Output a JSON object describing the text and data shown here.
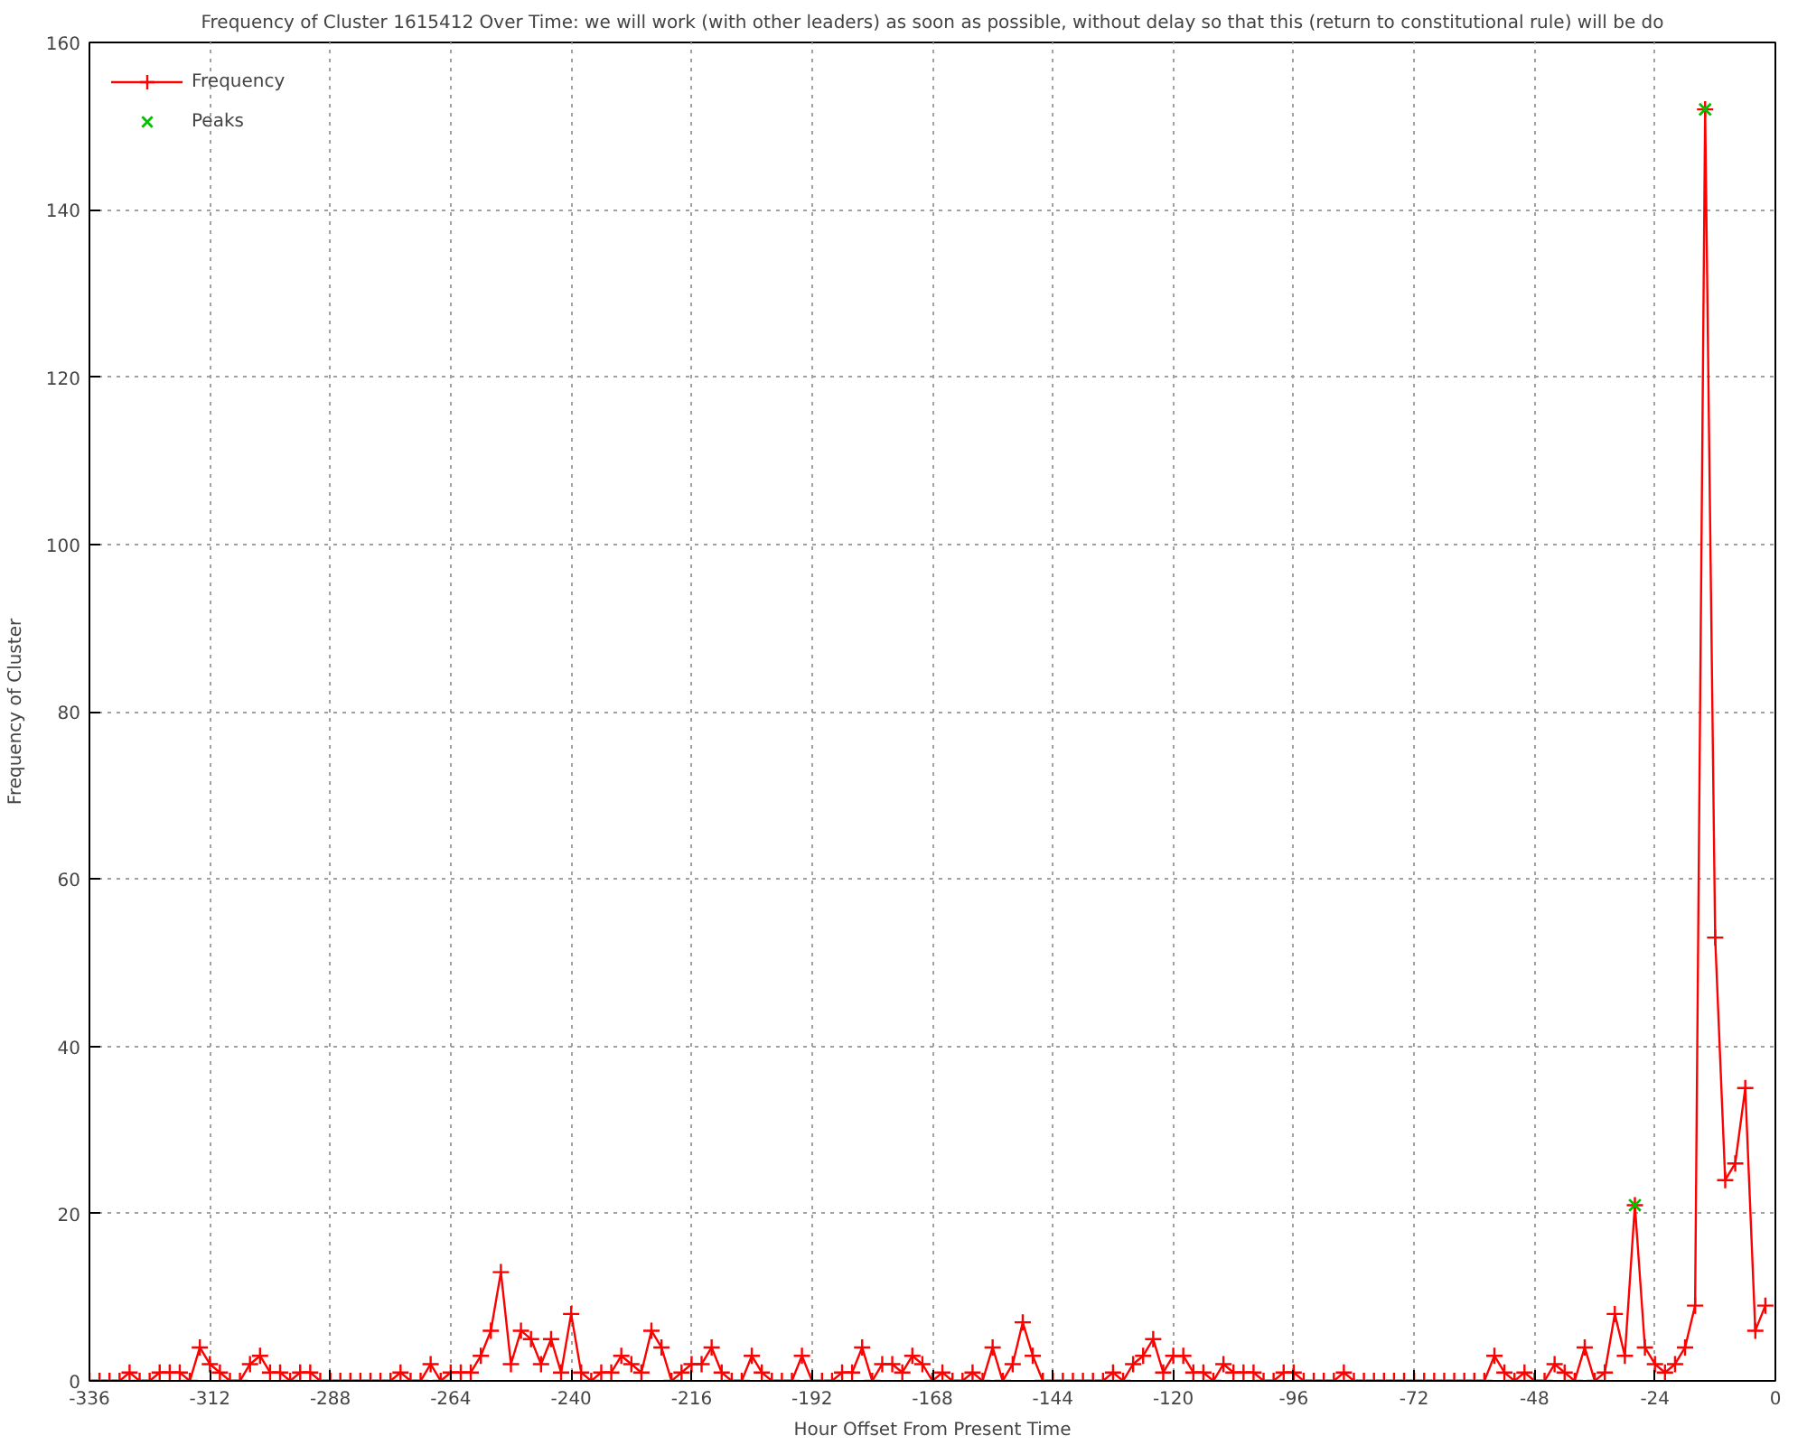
{
  "chart_data": {
    "type": "line",
    "title": "Frequency of Cluster 1615412 Over Time: we will work (with other leaders) as soon as possible, without delay so that this (return to constitutional rule) will be do",
    "xlabel": "Hour Offset From Present Time",
    "ylabel": "Frequency of Cluster",
    "xlim": [
      -336,
      0
    ],
    "ylim": [
      0,
      160
    ],
    "xticks": [
      -336,
      -312,
      -288,
      -264,
      -240,
      -216,
      -192,
      -168,
      -144,
      -120,
      -96,
      -72,
      -48,
      -24,
      0
    ],
    "yticks": [
      0,
      20,
      40,
      60,
      80,
      100,
      120,
      140,
      160
    ],
    "grid": true,
    "legend": "top left",
    "series": [
      {
        "name": "Frequency",
        "color": "#ff0000",
        "marker": "cross",
        "x": [
          -336,
          -334,
          -332,
          -330,
          -328,
          -326,
          -324,
          -322,
          -320,
          -318,
          -316,
          -314,
          -312,
          -310,
          -308,
          -306,
          -304,
          -302,
          -300,
          -298,
          -296,
          -294,
          -292,
          -290,
          -288,
          -286,
          -284,
          -282,
          -280,
          -278,
          -276,
          -274,
          -272,
          -270,
          -268,
          -266,
          -264,
          -262,
          -260,
          -258,
          -256,
          -254,
          -252,
          -250,
          -248,
          -246,
          -244,
          -242,
          -240,
          -238,
          -236,
          -234,
          -232,
          -230,
          -228,
          -226,
          -224,
          -222,
          -220,
          -218,
          -216,
          -214,
          -212,
          -210,
          -208,
          -206,
          -204,
          -202,
          -200,
          -198,
          -196,
          -194,
          -192,
          -190,
          -188,
          -186,
          -184,
          -182,
          -180,
          -178,
          -176,
          -174,
          -172,
          -170,
          -168,
          -166,
          -164,
          -162,
          -160,
          -158,
          -156,
          -154,
          -152,
          -150,
          -148,
          -146,
          -144,
          -142,
          -140,
          -138,
          -136,
          -134,
          -132,
          -130,
          -128,
          -126,
          -124,
          -122,
          -120,
          -118,
          -116,
          -114,
          -112,
          -110,
          -108,
          -106,
          -104,
          -102,
          -100,
          -98,
          -96,
          -94,
          -92,
          -90,
          -88,
          -86,
          -84,
          -82,
          -80,
          -78,
          -76,
          -74,
          -72,
          -70,
          -68,
          -66,
          -64,
          -62,
          -60,
          -58,
          -56,
          -54,
          -52,
          -50,
          -48,
          -46,
          -44,
          -42,
          -40,
          -38,
          -36,
          -34,
          -32,
          -30,
          -28,
          -26,
          -24,
          -22,
          -20,
          -18,
          -16,
          -14,
          -12,
          -10,
          -8,
          -6,
          -4,
          -2
        ],
        "values": [
          0,
          0,
          0,
          0,
          1,
          0,
          0,
          1,
          1,
          1,
          0,
          4,
          2,
          1,
          0,
          0,
          2,
          3,
          1,
          1,
          0,
          1,
          1,
          0,
          0,
          0,
          0,
          0,
          0,
          0,
          0,
          1,
          0,
          0,
          2,
          0,
          1,
          1,
          1,
          3,
          6,
          13,
          2,
          6,
          5,
          2,
          5,
          1,
          8,
          1,
          0,
          1,
          1,
          3,
          2,
          1,
          6,
          4,
          0,
          1,
          2,
          2,
          4,
          1,
          0,
          0,
          3,
          1,
          0,
          0,
          0,
          3,
          0,
          0,
          0,
          1,
          1,
          4,
          0,
          2,
          2,
          1,
          3,
          2,
          0,
          1,
          0,
          0,
          1,
          0,
          4,
          0,
          2,
          7,
          3,
          0,
          0,
          0,
          0,
          0,
          0,
          0,
          1,
          0,
          2,
          3,
          5,
          1,
          3,
          3,
          1,
          1,
          0,
          2,
          1,
          1,
          1,
          0,
          0,
          1,
          1,
          0,
          0,
          0,
          0,
          1,
          0,
          0,
          0,
          0,
          0,
          0,
          0,
          0,
          0,
          0,
          0,
          0,
          0,
          0,
          3,
          1,
          0,
          1,
          0,
          0,
          2,
          1,
          0,
          4,
          0,
          1,
          8,
          3,
          21,
          4,
          2,
          1,
          2,
          4,
          9,
          152,
          53,
          24,
          26,
          35,
          6,
          9
        ]
      },
      {
        "name": "Peaks",
        "type": "scatter",
        "color": "#00c000",
        "marker": "x",
        "x": [
          -28,
          -14
        ],
        "values": [
          21,
          152
        ]
      }
    ]
  }
}
